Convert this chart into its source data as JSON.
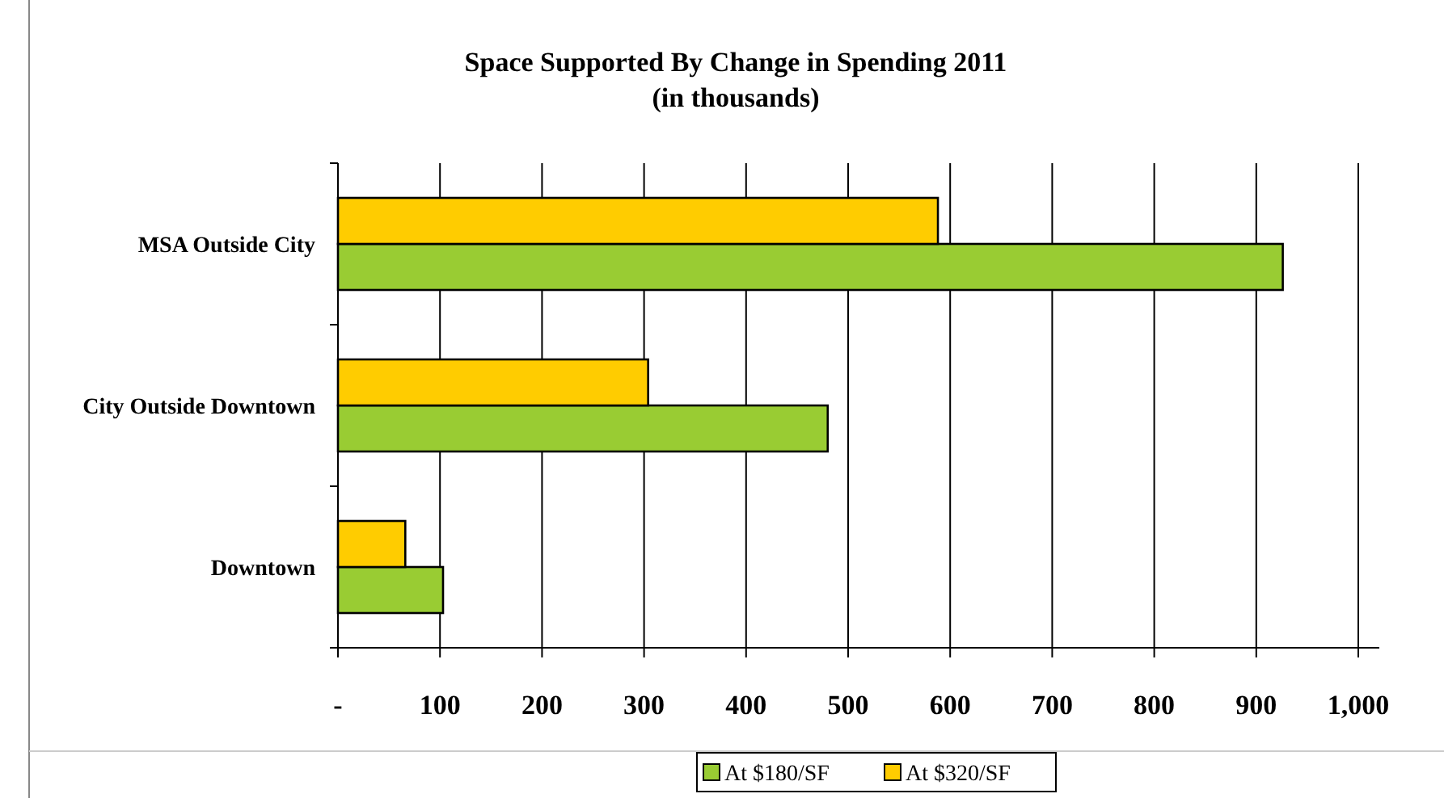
{
  "chart_data": {
    "type": "bar",
    "orientation": "horizontal",
    "title": "Space Supported By Change in Spending 2011",
    "subtitle": "(in thousands)",
    "categories": [
      "MSA Outside City",
      "City Outside Downtown",
      "Downtown"
    ],
    "series": [
      {
        "name": "At $180/SF",
        "color": "#99cc33",
        "values": [
          926,
          480,
          103
        ]
      },
      {
        "name": "At $320/SF",
        "color": "#ffcc00",
        "values": [
          588,
          304,
          66
        ]
      }
    ],
    "xlim": [
      0,
      1000
    ],
    "xticks": [
      {
        "value": 0,
        "label": "-"
      },
      100,
      200,
      300,
      400,
      500,
      600,
      700,
      800,
      900,
      {
        "value": 1000,
        "label": "1,000"
      }
    ],
    "grid": "x",
    "legend": "bottom"
  }
}
